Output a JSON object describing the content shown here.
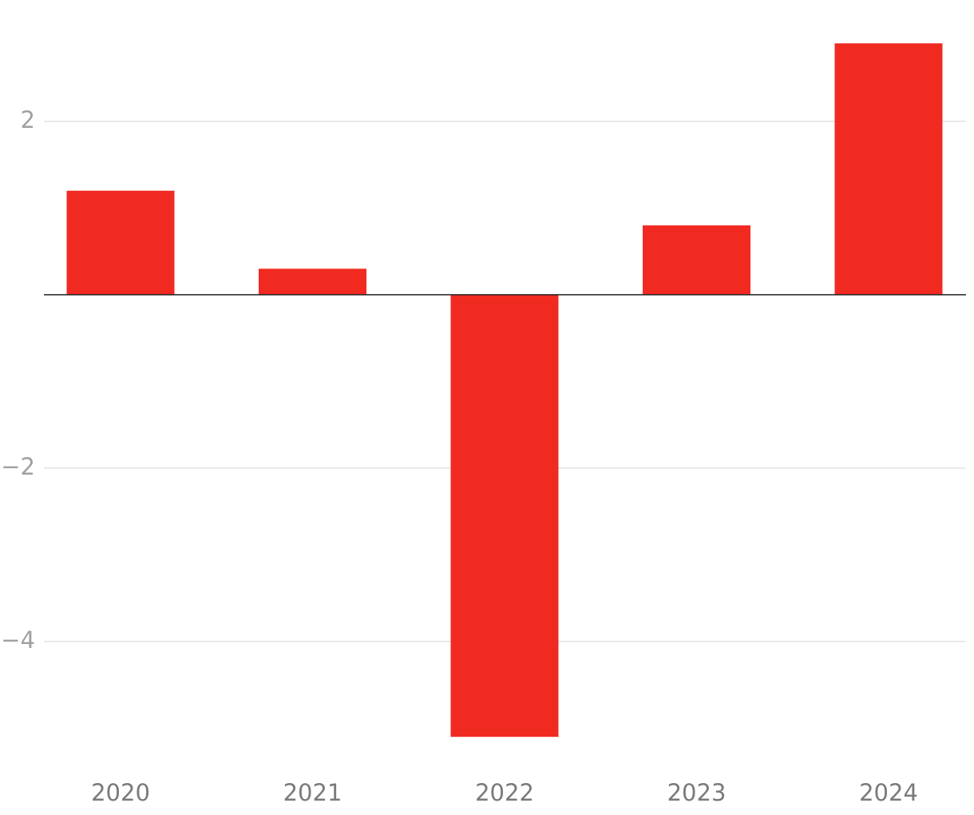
{
  "chart_data": {
    "type": "bar",
    "categories": [
      "2020",
      "2021",
      "2022",
      "2023",
      "2024"
    ],
    "values": [
      1.2,
      0.3,
      -5.1,
      0.8,
      2.9
    ],
    "color": "#f12a21",
    "ylim": [
      -5.5,
      3.4
    ],
    "yticks": [
      {
        "value": -4,
        "label": "−4"
      },
      {
        "value": -2,
        "label": "−2"
      },
      2
    ],
    "grid": true
  }
}
